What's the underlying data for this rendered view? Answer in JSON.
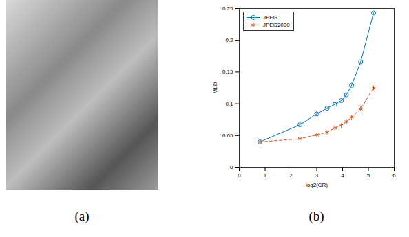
{
  "chart_data": {
    "type": "line",
    "x_label": "log2(CR)",
    "y_label": "MLD",
    "xlim": [
      0,
      6
    ],
    "xticks": [
      0,
      1,
      2,
      3,
      4,
      5,
      6
    ],
    "ylim": [
      0,
      0.25
    ],
    "yticks": [
      0,
      0.05,
      0.1,
      0.15,
      0.2,
      0.25
    ],
    "grid": false,
    "legend": "top-left",
    "x": [
      0.8,
      2.35,
      3.0,
      3.4,
      3.7,
      3.95,
      4.15,
      4.35,
      4.7,
      5.2
    ],
    "series": [
      {
        "name": "JPEG",
        "color": "#0072bd",
        "marker": "circle",
        "line_style": "solid",
        "values": [
          0.04,
          0.067,
          0.084,
          0.093,
          0.099,
          0.105,
          0.114,
          0.129,
          0.166,
          0.243
        ]
      },
      {
        "name": "JPEG2000",
        "color": "#d95319",
        "marker": "asterisk",
        "line_style": "dashed",
        "values": [
          0.04,
          0.045,
          0.051,
          0.055,
          0.062,
          0.066,
          0.072,
          0.079,
          0.092,
          0.125
        ]
      }
    ]
  },
  "captions": [
    "(a)",
    "(b)"
  ]
}
